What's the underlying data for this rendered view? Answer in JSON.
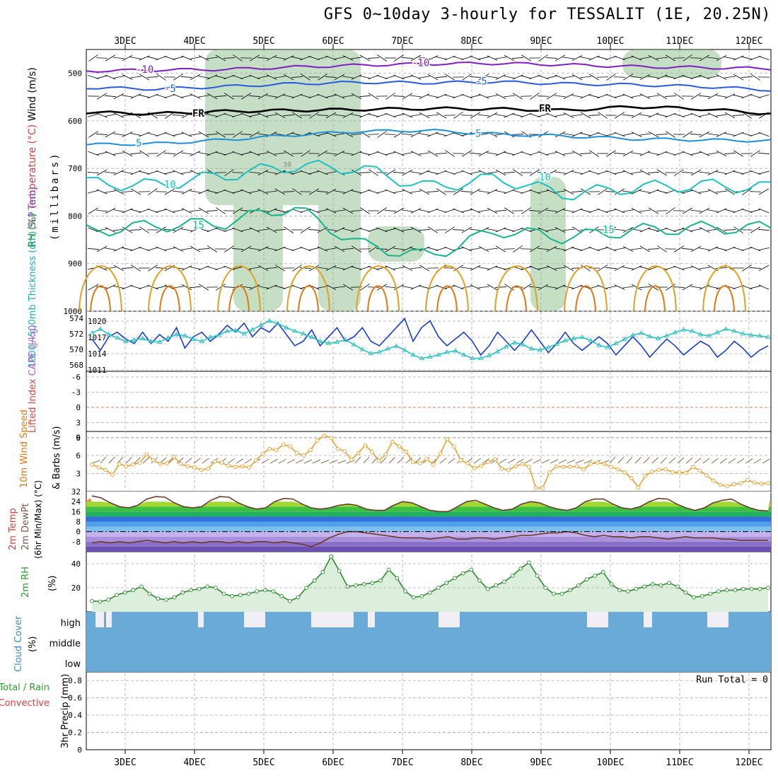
{
  "title": "GFS 0~10day 3-hourly for TESSALIT (1E, 20.25N)",
  "date_labels": [
    "3DEC",
    "4DEC",
    "5DEC",
    "6DEC",
    "7DEC",
    "8DEC",
    "9DEC",
    "10DEC",
    "11DEC",
    "12DEC"
  ],
  "colors": {
    "temp_neg10": "#7f1fbf",
    "temp_neg5": "#2b5bdb",
    "freezing": "#000000",
    "temp_5": "#1e90d8",
    "temp_10": "#1ec0c0",
    "temp_15": "#19b48c",
    "temp_20": "#e0a020",
    "temp_25": "#e07810",
    "rh_fill": "#7fb87f",
    "slp": "#1a3ccc",
    "thickness": "#2ec0c0",
    "wind_speed": "#e8a030",
    "barb": "#000000",
    "rh2m": "#2e8b2e",
    "cloud": "#6aaad6",
    "zero_line": "#e04040"
  },
  "chart_data": [
    {
      "panel": "upper_air",
      "type": "contour",
      "ylabel_parts": [
        "Wind (m/s)",
        "Temperature (°C)",
        "RH (%)"
      ],
      "ylabel_unit": "(millibars)",
      "y_ticks": [
        500,
        600,
        700,
        800,
        900,
        1000
      ],
      "ylim": [
        1000,
        450
      ],
      "contour_labels": [
        "-10",
        "-5",
        "FR",
        "5",
        "10",
        "15",
        "30"
      ],
      "contours": [
        {
          "label": "-10",
          "level_mb": [
            495,
            493,
            492,
            487,
            483,
            480,
            479,
            482,
            486,
            488,
            490
          ]
        },
        {
          "label": "-5",
          "level_mb": [
            530,
            533,
            528,
            522,
            519,
            520,
            518,
            522,
            524,
            528,
            535
          ]
        },
        {
          "label": "FR",
          "level_mb": [
            582,
            585,
            580,
            578,
            576,
            574,
            575,
            578,
            570,
            575,
            585
          ]
        },
        {
          "label": "5",
          "level_mb": [
            650,
            648,
            640,
            630,
            622,
            620,
            628,
            632,
            638,
            640,
            642
          ]
        },
        {
          "label": "10",
          "level_mb": [
            730,
            735,
            715,
            695,
            700,
            740,
            720,
            755,
            740,
            735,
            740
          ]
        },
        {
          "label": "15",
          "level_mb": [
            832,
            820,
            815,
            780,
            860,
            885,
            830,
            845,
            830,
            825,
            825
          ]
        }
      ]
    },
    {
      "panel": "slp_thickness",
      "type": "line",
      "ylabel": "1000~500mb Thickness (dm) SLP (mb)",
      "left_ticks": [
        "574",
        "572",
        "570",
        "568"
      ],
      "right_ticks": [
        "1020",
        "1017",
        "1014",
        "1011"
      ],
      "series": [
        {
          "name": "SLP",
          "units": "mb",
          "values": [
            1016.5,
            1014,
            1017,
            1018,
            1016.5,
            1015.5,
            1018,
            1015.5,
            1017.5,
            1016,
            1019,
            1014.5,
            1017,
            1018,
            1016,
            1017.5,
            1019.5,
            1018,
            1020,
            1017,
            1019,
            1018,
            1020,
            1017.5,
            1015,
            1016,
            1018.5,
            1015,
            1017,
            1019,
            1016,
            1017,
            1019,
            1016,
            1015,
            1017,
            1019,
            1021,
            1016,
            1019,
            1020.5,
            1017,
            1015,
            1016.5,
            1018,
            1016,
            1013,
            1015,
            1018,
            1016,
            1014,
            1016,
            1018.5,
            1016,
            1013.5,
            1015.5,
            1018,
            1015.5,
            1014,
            1015.5,
            1017,
            1015.5,
            1013,
            1015,
            1017,
            1015,
            1012.5,
            1014.5,
            1016.5,
            1015,
            1013,
            1014.5,
            1016,
            1015,
            1012.5,
            1014,
            1016,
            1014.5,
            1012.5,
            1014,
            1015
          ]
        },
        {
          "name": "Thickness",
          "units": "dm",
          "values": [
            572.2,
            572.8,
            572.0,
            571.5,
            571.0,
            571.2,
            571.4,
            571.0,
            570.9,
            571.5,
            572.0,
            571.8,
            571.3,
            571.0,
            571.6,
            571.9,
            572.5,
            572.6,
            572.1,
            572.7,
            573.4,
            574.0,
            573.6,
            573.0,
            572.5,
            572.1,
            571.6,
            571.0,
            570.7,
            570.9,
            571.2,
            570.5,
            569.8,
            569.2,
            569.4,
            569.9,
            570.3,
            569.7,
            569.0,
            568.5,
            568.7,
            569.0,
            569.4,
            569.6,
            569.0,
            568.5,
            568.5,
            568.9,
            569.5,
            570.2,
            570.8,
            570.5,
            569.9,
            569.7,
            570.1,
            570.6,
            571.1,
            571.4,
            571.6,
            571.1,
            570.4,
            570.1,
            570.7,
            571.3,
            571.9,
            572.2,
            571.7,
            571.4,
            571.8,
            572.3,
            572.7,
            572.5,
            572.0,
            571.8,
            572.3,
            572.8,
            572.5,
            572.1,
            571.9,
            571.8,
            571.6
          ]
        }
      ]
    },
    {
      "panel": "lifted_index_cape",
      "type": "line",
      "ylabel": "Lifted Index CAPE (J/kg)",
      "y_ticks": [
        "-6",
        "-3",
        "0",
        "3",
        "6"
      ],
      "ylim": [
        6,
        -6
      ],
      "series": []
    },
    {
      "panel": "wind10m",
      "type": "line",
      "ylabel": "10m Wind Speed & Barbs (m/s)",
      "y_ticks": [
        "9",
        "6",
        "3"
      ],
      "ylim": [
        0,
        10
      ],
      "series": [
        {
          "name": "Wind speed",
          "values": [
            4.5,
            4.0,
            3.6,
            2.8,
            4.6,
            4.2,
            4.5,
            4.8,
            6.2,
            5.2,
            4.6,
            4.7,
            5.8,
            4.6,
            4.2,
            4.0,
            3.6,
            3.8,
            5.0,
            4.8,
            4.3,
            4.1,
            4.2,
            4.0,
            5.2,
            6.3,
            7.1,
            6.9,
            7.8,
            7.5,
            6.4,
            6.0,
            6.9,
            8.5,
            9.3,
            8.9,
            7.1,
            6.7,
            5.3,
            6.4,
            7.7,
            6.6,
            5.1,
            6.2,
            8.3,
            7.5,
            6.6,
            4.9,
            4.7,
            5.4,
            4.5,
            6.3,
            8.7,
            7.5,
            5.2,
            4.7,
            3.9,
            4.3,
            4.9,
            5.4,
            3.8,
            3.6,
            4.2,
            4.6,
            4.1,
            0.6,
            0.6,
            3.2,
            4.2,
            4.1,
            4.1,
            4.2,
            3.7,
            4.6,
            4.8,
            4.6,
            4.1,
            3.7,
            3.2,
            2.2,
            0.7,
            2.6,
            3.3,
            3.6,
            3.7,
            3.2,
            3.2,
            3.1,
            4.1,
            3.5,
            2.7,
            1.8,
            1.1,
            0.9,
            1.2,
            1.4,
            1.9,
            1.5,
            1.3,
            1.4
          ]
        }
      ]
    },
    {
      "panel": "temp2m",
      "type": "area",
      "ylabel": "2m Temp 2m DewPt (6hr Min/Max) (°C)",
      "y_ticks": [
        "32",
        "24",
        "16",
        "8",
        "0",
        "-8"
      ],
      "ylim": [
        -16,
        32
      ],
      "series": [
        {
          "name": "2m Temp",
          "values": [
            28.5,
            27,
            23,
            20,
            19,
            21,
            26,
            28,
            27.5,
            23,
            20,
            19,
            20,
            25,
            28,
            27.5,
            23,
            20,
            18,
            19,
            24,
            26.5,
            26,
            22,
            19,
            18,
            19,
            21,
            22,
            21,
            18,
            17,
            17,
            21,
            24,
            23,
            20,
            17,
            16,
            16,
            20,
            24,
            25,
            22,
            19,
            17,
            18,
            22,
            24,
            23,
            20,
            18,
            17,
            19,
            24,
            26,
            26,
            22,
            19,
            18,
            20,
            24,
            26.5,
            26,
            22,
            19,
            17,
            19,
            23,
            25,
            26,
            22,
            19,
            17,
            16.5
          ]
        },
        {
          "name": "2m DewPt",
          "values": [
            -9,
            -8,
            -9,
            -8,
            -9,
            -8,
            -7,
            -8,
            -9,
            -8,
            -9,
            -8,
            -9,
            -8,
            -8,
            -9,
            -8,
            -9,
            -8,
            -8,
            -9,
            -8,
            -9,
            -10,
            -12,
            -9,
            -5,
            -2,
            0,
            0,
            -1,
            -2,
            -3,
            -4,
            -5,
            -5,
            -5,
            -6,
            -5,
            -4,
            -6,
            -6,
            -5,
            -5,
            -6,
            -5,
            -4,
            -3,
            -3,
            -2,
            -1,
            -1,
            0,
            -1,
            -3,
            -4,
            -3,
            -4,
            -4,
            -5,
            -4,
            -4,
            -5,
            -6,
            -5,
            -4,
            -5,
            -5,
            -5,
            -6,
            -6,
            -7,
            -7,
            -7,
            -7
          ]
        }
      ]
    },
    {
      "panel": "rh2m",
      "type": "line",
      "ylabel": "2m RH (%)",
      "y_ticks": [
        "40",
        "20"
      ],
      "ylim": [
        0,
        50
      ],
      "series": [
        {
          "name": "2m RH",
          "values": [
            9,
            8.5,
            10,
            14,
            16,
            18,
            21,
            15,
            11,
            10,
            12,
            16,
            18,
            19,
            21,
            20,
            15,
            13,
            14,
            15,
            17,
            18,
            17,
            13,
            9,
            12,
            20,
            26,
            33,
            46,
            34,
            21,
            22,
            23,
            24,
            26,
            35,
            28,
            17,
            12,
            13,
            16,
            20,
            24,
            28,
            32,
            35,
            26,
            19,
            22,
            25,
            30,
            36,
            41,
            30,
            20,
            15,
            15,
            18,
            22,
            27,
            30,
            33,
            23,
            18,
            17,
            19,
            21,
            23,
            22,
            24,
            21,
            16,
            12,
            13,
            15,
            17,
            18,
            18,
            19,
            19,
            19,
            20
          ]
        }
      ]
    },
    {
      "panel": "cloud_cover",
      "type": "bar",
      "ylabel": "Cloud Cover (%)",
      "levels": [
        "high",
        "middle",
        "low"
      ]
    },
    {
      "panel": "precip",
      "type": "bar",
      "ylabel_parts": [
        "Total / Rain",
        "Convective",
        "3hr Precip (mm)"
      ],
      "y_ticks": [
        "0.8",
        "0.6",
        "0.4",
        "0.2",
        "0"
      ],
      "ylim": [
        0,
        0.9
      ],
      "run_total_label": "Run Total = 0",
      "values": []
    }
  ]
}
